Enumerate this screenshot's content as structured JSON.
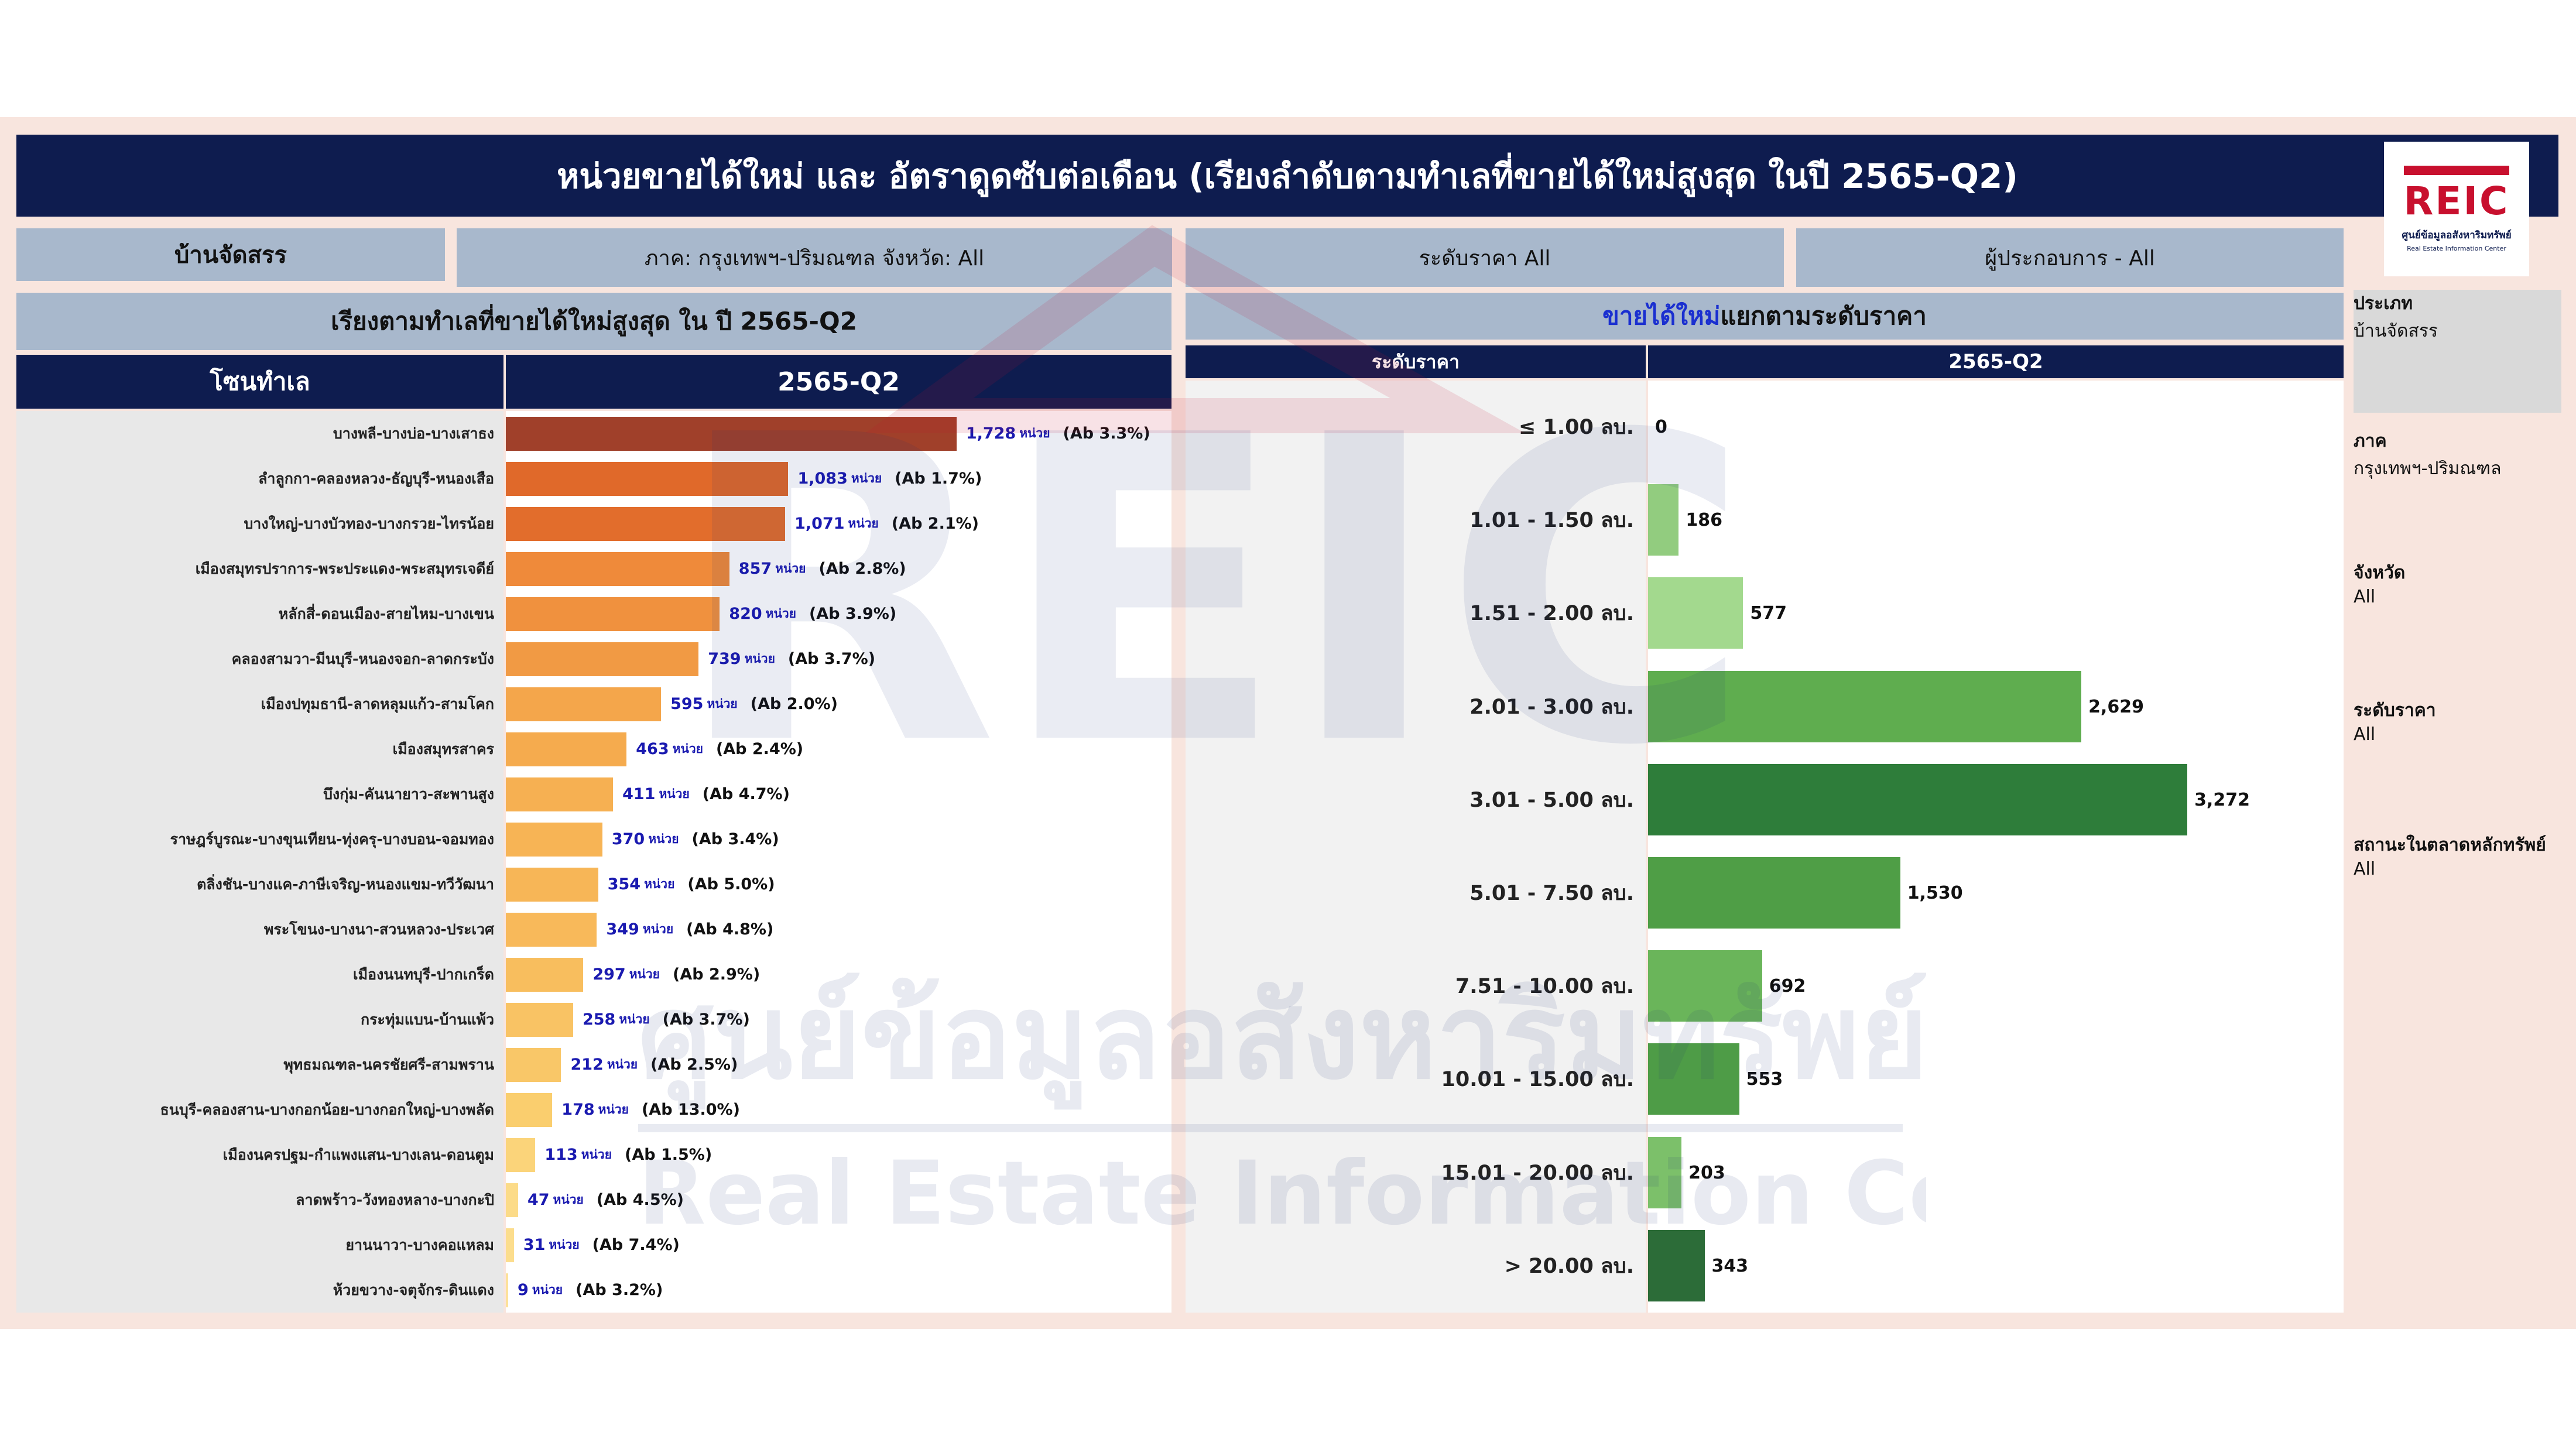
{
  "title": "หน่วยขายได้ใหม่ และ อัตราดูดซับต่อเดือน (เรียงลำดับตามทำเลที่ขายได้ใหม่สูงสุด ในปี 2565-Q2)",
  "logo": {
    "word": "REIC",
    "sub1": "ศูนย์ข้อมูลอสังหาริมทรัพย์",
    "sub2": "Real Estate Information Center"
  },
  "filters": {
    "type_label": "บ้านจัดสรร",
    "region": "ภาค: กรุงเทพฯ-ปริมณฑล    จังหวัด: All",
    "price": "ระดับราคา   All",
    "developer": "ผู้ประกอบการ - All"
  },
  "left": {
    "subheader": "เรียงตามทำเลที่ขายได้ใหม่สูงสุด ใน ปี 2565-Q2",
    "col_zone": "โซนทำเล",
    "col_period": "2565-Q2",
    "unit": "หน่วย"
  },
  "right": {
    "subheader_highlight": "ขายได้ใหม่",
    "subheader_rest": " แยกตามระดับราคา",
    "col_price": "ระดับราคา",
    "col_period": "2565-Q2"
  },
  "sidebar": [
    {
      "key": "ประเภท",
      "value": "บ้านจัดสรร"
    },
    {
      "key": "ภาค",
      "value": "กรุงเทพฯ-ปริมณฑล"
    },
    {
      "key": "จังหวัด",
      "value": "All"
    },
    {
      "key": "ระดับราคา",
      "value": "All"
    },
    {
      "key": "สถานะในตลาดหลักทรัพย์",
      "value": "All"
    }
  ],
  "watermark": {
    "word": "REIC",
    "thai": "ศูนย์ข้อมูลอสังหาริมทรัพย์",
    "eng": "Real Estate Information Center"
  },
  "colors": {
    "navy": "#0e1c4f",
    "zone_bars": [
      "#a0402a",
      "#e0692a",
      "#e26d2c",
      "#ef8a3a",
      "#f0913e",
      "#f19a44",
      "#f4a64b",
      "#f5ab4e",
      "#f6b052",
      "#f7b455",
      "#f7b657",
      "#f8b95a",
      "#f8be5e",
      "#f9c364",
      "#f9c768",
      "#face6e",
      "#fbd47a",
      "#fcdb88",
      "#fcdd8d",
      "#fde19a"
    ],
    "price_bars": [
      "#7fbf6e",
      "#92cc7f",
      "#a3d98e",
      "#5fad4f",
      "#2e7d3a",
      "#4f9e46",
      "#6ab55a",
      "#4e9c47",
      "#7cc06a",
      "#2c6c38"
    ]
  },
  "chart_data": [
    {
      "type": "bar",
      "orientation": "horizontal",
      "title": "เรียงตามทำเลที่ขายได้ใหม่สูงสุด ใน ปี 2565-Q2",
      "xlabel": "2565-Q2",
      "ylabel": "โซนทำเล",
      "categories": [
        "บางพลี-บางบ่อ-บางเสาธง",
        "ลำลูกกา-คลองหลวง-ธัญบุรี-หนองเสือ",
        "บางใหญ่-บางบัวทอง-บางกรวย-ไทรน้อย",
        "เมืองสมุทรปราการ-พระประแดง-พระสมุทรเจดีย์",
        "หลักสี่-ดอนเมือง-สายไหม-บางเขน",
        "คลองสามวา-มีนบุรี-หนองจอก-ลาดกระบัง",
        "เมืองปทุมธานี-ลาดหลุมแก้ว-สามโคก",
        "เมืองสมุทรสาคร",
        "บึงกุ่ม-คันนายาว-สะพานสูง",
        "ราษฎร์บูรณะ-บางขุนเทียน-ทุ่งครุ-บางบอน-จอมทอง",
        "ตลิ่งชัน-บางแค-ภาษีเจริญ-หนองแขม-ทวีวัฒนา",
        "พระโขนง-บางนา-สวนหลวง-ประเวศ",
        "เมืองนนทบุรี-ปากเกร็ด",
        "กระทุ่มแบน-บ้านแพ้ว",
        "พุทธมณฑล-นครชัยศรี-สามพราน",
        "ธนบุรี-คลองสาน-บางกอกน้อย-บางกอกใหญ่-บางพลัด",
        "เมืองนครปฐม-กำแพงแสน-บางเลน-ดอนตูม",
        "ลาดพร้าว-วังทองหลาง-บางกะปิ",
        "ยานนาวา-บางคอแหลม",
        "ห้วยขวาง-จตุจักร-ดินแดง"
      ],
      "series": [
        {
          "values": [
            1728,
            1083,
            1071,
            857,
            820,
            739,
            595,
            463,
            411,
            370,
            354,
            349,
            297,
            258,
            212,
            178,
            113,
            47,
            31,
            9
          ]
        }
      ],
      "absorption": [
        "(Ab 3.3%)",
        "(Ab 1.7%)",
        "(Ab 2.1%)",
        "(Ab 2.8%)",
        "(Ab 3.9%)",
        "(Ab 3.7%)",
        "(Ab 2.0%)",
        "(Ab 2.4%)",
        "(Ab 4.7%)",
        "(Ab 3.4%)",
        "(Ab 5.0%)",
        "(Ab 4.8%)",
        "(Ab 2.9%)",
        "(Ab 3.7%)",
        "(Ab 2.5%)",
        "(Ab 13.0%)",
        "(Ab 1.5%)",
        "(Ab 4.5%)",
        "(Ab 7.4%)",
        "(Ab 3.2%)"
      ],
      "xlim": [
        0,
        2500
      ]
    },
    {
      "type": "bar",
      "orientation": "horizontal",
      "title": "ขายได้ใหม่ แยกตามระดับราคา",
      "xlabel": "2565-Q2",
      "ylabel": "ระดับราคา",
      "categories": [
        "≤ 1.00 ลบ.",
        "1.01 - 1.50 ลบ.",
        "1.51 - 2.00 ลบ.",
        "2.01 - 3.00 ลบ.",
        "3.01 - 5.00 ลบ.",
        "5.01 - 7.50 ลบ.",
        "7.51 - 10.00 ลบ.",
        "10.01 - 15.00 ลบ.",
        "15.01 - 20.00 ลบ.",
        "> 20.00 ลบ."
      ],
      "series": [
        {
          "values": [
            0,
            186,
            577,
            2629,
            3272,
            1530,
            692,
            553,
            203,
            343
          ]
        }
      ],
      "xlim": [
        0,
        3800
      ]
    }
  ]
}
